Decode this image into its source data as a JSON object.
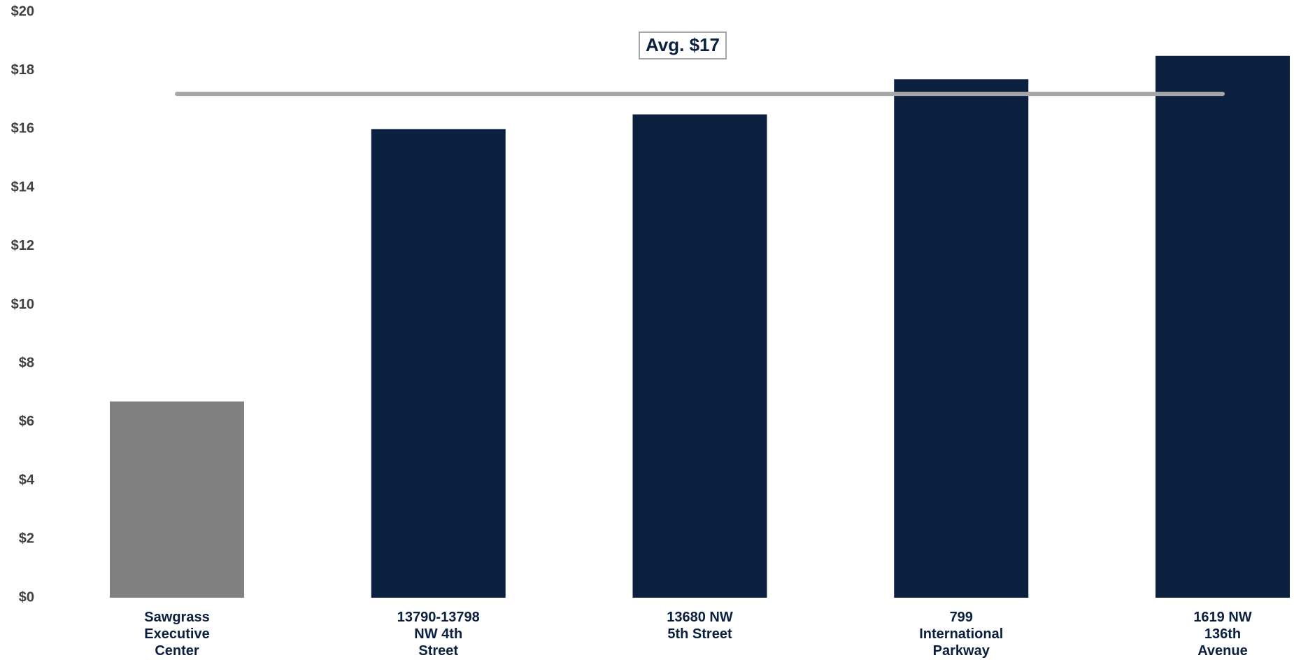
{
  "chart_data": {
    "type": "bar",
    "title": "",
    "xlabel": "",
    "ylabel": "",
    "ylim": [
      0,
      20
    ],
    "y_ticks": [
      0,
      2,
      4,
      6,
      8,
      10,
      12,
      14,
      16,
      18,
      20
    ],
    "y_tick_labels": [
      "$0",
      "$2",
      "$4",
      "$6",
      "$8",
      "$10",
      "$12",
      "$14",
      "$16",
      "$18",
      "$20"
    ],
    "categories": [
      [
        "Sawgrass",
        "Executive",
        "Center"
      ],
      [
        "13790-13798",
        "NW 4th",
        "Street"
      ],
      [
        "13680 NW",
        "5th Street"
      ],
      [
        "799",
        "International",
        "Parkway"
      ],
      [
        "1619 NW",
        "136th",
        "Avenue"
      ]
    ],
    "values": [
      6.7,
      16.0,
      16.5,
      17.7,
      18.5
    ],
    "bar_colors": [
      "#808080",
      "#0b1f3e",
      "#0b1f3e",
      "#0b1f3e",
      "#0b1f3e"
    ],
    "grid": false,
    "legend": "none",
    "average": {
      "value": 17.2,
      "label": "Avg. $17",
      "line_color": "#a6a6a6"
    }
  }
}
